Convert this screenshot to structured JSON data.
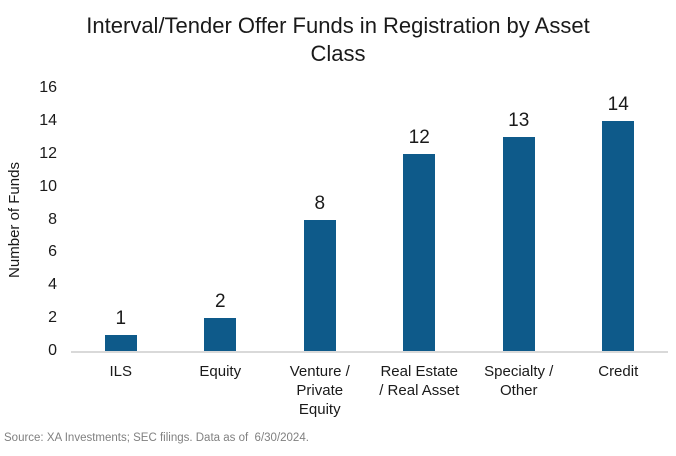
{
  "title": "Interval/Tender Offer Funds in Registration by Asset Class",
  "source_note": "Source: XA Investments; SEC filings. Data as of  6/30/2024.",
  "colors": {
    "bar": "#0E5A8A",
    "baseline": "#d9d9d9",
    "text": "#1a1a1a",
    "source_text": "#808080",
    "background": "#ffffff"
  },
  "chart_data": {
    "type": "bar",
    "title": "Interval/Tender Offer Funds in Registration by Asset Class",
    "categories": [
      "ILS",
      "Equity",
      "Venture / Private Equity",
      "Real Estate / Real Asset",
      "Specialty / Other",
      "Credit"
    ],
    "category_lines": [
      [
        "ILS"
      ],
      [
        "Equity"
      ],
      [
        "Venture /",
        "Private",
        "Equity"
      ],
      [
        "Real Estate",
        "/ Real Asset"
      ],
      [
        "Specialty /",
        "Other"
      ],
      [
        "Credit"
      ]
    ],
    "values": [
      1,
      2,
      8,
      12,
      13,
      14
    ],
    "data_labels": [
      "1",
      "2",
      "8",
      "12",
      "13",
      "14"
    ],
    "xlabel": "",
    "ylabel": "Number of Funds",
    "ylim": [
      0,
      16
    ],
    "yticks": [
      0,
      2,
      4,
      6,
      8,
      10,
      12,
      14,
      16
    ],
    "grid": false,
    "legend": false,
    "data_labels_shown": true
  }
}
